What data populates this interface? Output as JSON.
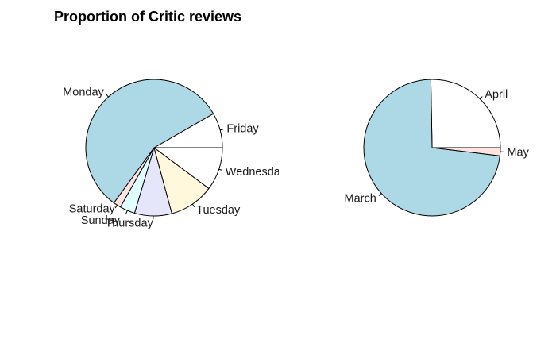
{
  "chart_data": {
    "type": "pie",
    "title": "Proportion of Critic reviews",
    "charts": [
      {
        "slices": [
          {
            "label": "Friday",
            "value": 8.3,
            "color": "#ffffff"
          },
          {
            "label": "Monday",
            "value": 56.7,
            "color": "#add8e6"
          },
          {
            "label": "Saturday",
            "value": 1.8,
            "color": "#ffe4e1"
          },
          {
            "label": "Sunday",
            "value": 3.6,
            "color": "#e0ffff"
          },
          {
            "label": "Thursday",
            "value": 8.8,
            "color": "#e6e6fa"
          },
          {
            "label": "Tuesday",
            "value": 10.6,
            "color": "#fff8dc"
          },
          {
            "label": "Wednesday",
            "value": 10.2,
            "color": "#ffffff"
          }
        ]
      },
      {
        "slices": [
          {
            "label": "April",
            "value": 25.3,
            "color": "#ffffff"
          },
          {
            "label": "March",
            "value": 72.8,
            "color": "#add8e6"
          },
          {
            "label": "May",
            "value": 1.9,
            "color": "#ffe4e1"
          }
        ]
      }
    ]
  }
}
